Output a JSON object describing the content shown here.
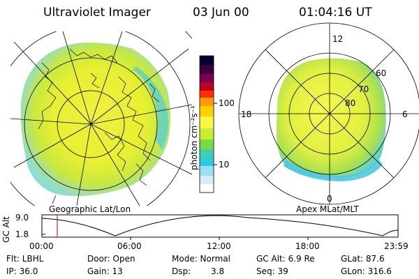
{
  "header": {
    "instrument": "Ultraviolet Imager",
    "date": "03 Jun 00",
    "time": "01:04:16 UT"
  },
  "left_panel": {
    "caption": "Geographic Lat/Lon"
  },
  "colorbar": {
    "unit": "photon cm⁻²s⁻¹",
    "ticks": [
      "100",
      "10"
    ],
    "colors": [
      "#000033",
      "#3a0040",
      "#6a0050",
      "#a00040",
      "#d80020",
      "#ff4000",
      "#ff9a00",
      "#ffd000",
      "#ffff40",
      "#d8f020",
      "#90e030",
      "#50d0c0",
      "#30c8e0",
      "#a0e0f0",
      "#e8f4f8"
    ]
  },
  "right_panel": {
    "caption": "Apex MLat/MLT",
    "mlt_labels": {
      "top": "12",
      "left": "18",
      "right": "6",
      "bottom": "0"
    },
    "lat_labels": [
      "60",
      "70",
      "80"
    ]
  },
  "altitude_plot": {
    "ylabel": "GC Alt",
    "yticks": [
      "9.0",
      "1.8"
    ],
    "xticks": [
      "00:00",
      "06:00",
      "12:00",
      "18:00",
      "23:59"
    ],
    "current_time_color": "#cc0000"
  },
  "status": {
    "filter": "Flt: LBHL",
    "door": "Door: Open",
    "mode": "Mode: Normal",
    "gc_alt": "GC Alt: 6.9 Re",
    "glat": "GLat: 87.6",
    "ip": "IP: 36.0",
    "gain": "Gain: 13",
    "dsp": "Dsp:",
    "dsp_value": "3.8",
    "seq": "Seq: 39",
    "glon": "GLon: 316.6"
  }
}
